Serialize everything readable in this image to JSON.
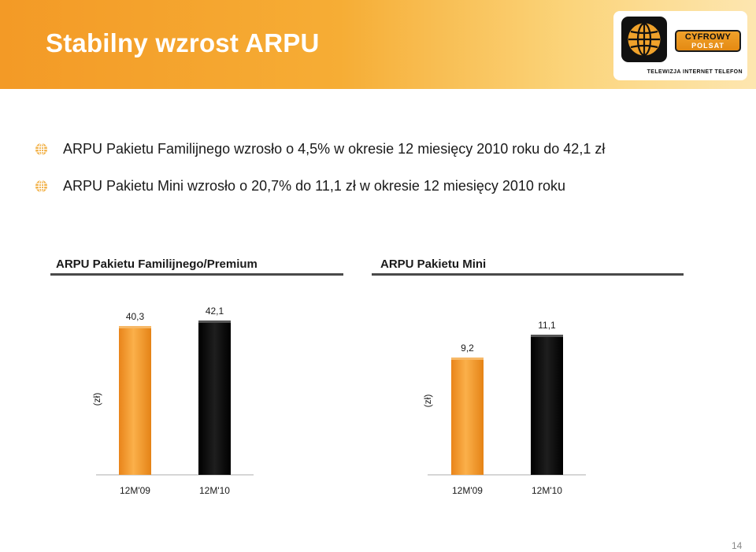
{
  "header": {
    "title": "Stabilny wzrost ARPU",
    "logo": {
      "line1": "CYFROWY",
      "line2": "POLSAT",
      "tagline": "TELEWIZJA INTERNET TELEFON"
    }
  },
  "bullets": [
    "ARPU Pakietu Familijnego wzrosło o 4,5% w okresie 12 miesięcy 2010 roku do 42,1 zł",
    "ARPU Pakietu Mini wzrosło o 20,7% do 11,1 zł w okresie 12 miesięcy 2010 roku"
  ],
  "chart_data": [
    {
      "type": "bar",
      "title": "ARPU Pakietu Familijnego/Premium",
      "ylabel": "(zł)",
      "categories": [
        "12M'09",
        "12M'10"
      ],
      "values": [
        40.3,
        42.1
      ],
      "value_labels": [
        "40,3",
        "42,1"
      ],
      "bar_colors": [
        "#f39a2e",
        "#111111"
      ]
    },
    {
      "type": "bar",
      "title": "ARPU Pakietu Mini",
      "ylabel": "(zł)",
      "categories": [
        "12M'09",
        "12M'10"
      ],
      "values": [
        9.2,
        11.1
      ],
      "value_labels": [
        "9,2",
        "11,1"
      ],
      "bar_colors": [
        "#f39a2e",
        "#111111"
      ]
    }
  ],
  "page_number": "14",
  "colors": {
    "accent_orange": "#f39a26",
    "bar_orange": "#f39a2e",
    "bar_black": "#111111"
  }
}
